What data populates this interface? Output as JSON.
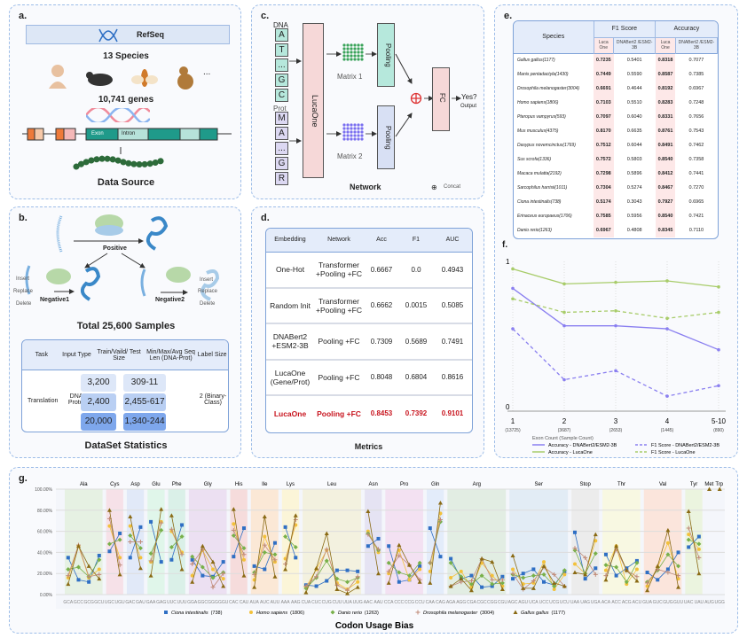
{
  "panel_a": {
    "label": "a.",
    "refseq": "RefSeq",
    "species": "13 Species",
    "ellipsis": "...",
    "genes": "10,741 genes",
    "exon": "Exon",
    "intron": "Intron",
    "title": "Data Source"
  },
  "panel_b": {
    "label": "b.",
    "positive": "Positive",
    "negative1": "Negative1",
    "negative2": "Negative2",
    "insert": "Insert",
    "replace": "Replace",
    "delete": "Delete",
    "total": "Total 25,600 Samples",
    "table": {
      "headers": [
        "Task",
        "Input Type",
        "Train/Vaild/ Test Size",
        "Min/Max/Avg Seq Len (DNA-Prot)",
        "Label Size"
      ],
      "task": "Translation",
      "input_type": "DNA -Protein",
      "sizes": [
        "3,200",
        "2,400",
        "20,000"
      ],
      "lens": [
        "309-11",
        "2,455-617",
        "1,340-244"
      ],
      "label_size": "2 (Binary-Class)"
    },
    "title": "DataSet Statistics"
  },
  "panel_c": {
    "label": "c.",
    "dna": "DNA",
    "dna_seq": [
      "A",
      "T",
      "...",
      "G",
      "C"
    ],
    "prot": "Prot",
    "prot_seq": [
      "M",
      "A",
      "...",
      "G",
      "R"
    ],
    "lucaone": "LucaOne",
    "matrix1": "Matrix 1",
    "matrix2": "Matrix 2",
    "pooling": "Pooling",
    "fc": "FC",
    "yes": "Yes?",
    "output": "Output",
    "title": "Network",
    "concat": "Concat"
  },
  "panel_d": {
    "label": "d.",
    "headers": [
      "Embedding",
      "Network",
      "Acc",
      "F1",
      "AUC"
    ],
    "rows": [
      [
        "One-Hot",
        "Transformer +Pooling +FC",
        "0.6667",
        "0.0",
        "0.4943"
      ],
      [
        "Random Init",
        "Transformer +Pooling +FC",
        "0.6662",
        "0.0015",
        "0.5085"
      ],
      [
        "DNABert2 +ESM2-3B",
        "Pooling +FC",
        "0.7309",
        "0.5689",
        "0.7491"
      ],
      [
        "LucaOne (Gene/Prot)",
        "Pooling +FC",
        "0.8048",
        "0.6804",
        "0.8616"
      ],
      [
        "LucaOne",
        "Pooling +FC",
        "0.8453",
        "0.7392",
        "0.9101"
      ]
    ],
    "title": "Metrics",
    "highlight_color": "#c8141e"
  },
  "panel_e": {
    "label": "e.",
    "species_header": "Species",
    "f1_header": "F1 Score",
    "acc_header": "Accuracy",
    "sub_headers": [
      "Luca One",
      "DNABert2 /ESM2-3B",
      "Luca One",
      "DNABert2 /ESM2-3B"
    ],
    "rows": [
      [
        "Gallus gallus(1177)",
        "0.7235",
        "0.5401",
        "0.8318",
        "0.7077"
      ],
      [
        "Manis pentadactyla(1430)",
        "0.7449",
        "0.5590",
        "0.8587",
        "0.7385"
      ],
      [
        "Drosophila melanogaster(3004)",
        "0.6691",
        "0.4644",
        "0.8192",
        "0.6967"
      ],
      [
        "Homo sapiens(1806)",
        "0.7103",
        "0.5510",
        "0.8283",
        "0.7248"
      ],
      [
        "Pteropus vampyrus(593)",
        "0.7097",
        "0.6040",
        "0.8331",
        "0.7656"
      ],
      [
        "Mus musculus(4375)",
        "0.8170",
        "0.6635",
        "0.8761",
        "0.7543"
      ],
      [
        "Dasypus novemcinctus(1769)",
        "0.7512",
        "0.6044",
        "0.8491",
        "0.7462"
      ],
      [
        "Sus scrofa(1336)",
        "0.7572",
        "0.5803",
        "0.8540",
        "0.7358"
      ],
      [
        "Macaca mulatta(2192)",
        "0.7298",
        "0.5896",
        "0.8412",
        "0.7441"
      ],
      [
        "Sarcophilus harrisii(1011)",
        "0.7304",
        "0.5274",
        "0.8467",
        "0.7270"
      ],
      [
        "Ciona intestinalis(738)",
        "0.5174",
        "0.3043",
        "0.7927",
        "0.6965"
      ],
      [
        "Erinaceus europaeus(1706)",
        "0.7585",
        "0.5956",
        "0.8540",
        "0.7421"
      ],
      [
        "Danio rerio(1263)",
        "0.6967",
        "0.4808",
        "0.8345",
        "0.7110"
      ]
    ]
  },
  "panel_f": {
    "label": "f."
  },
  "panel_g": {
    "label": "g.",
    "title": "Codon Usage Bias"
  },
  "chart_data": [
    {
      "type": "line",
      "title": "",
      "xlabel": "Exon Count (Sample Count)",
      "ylabel": "",
      "ylim": [
        0,
        1
      ],
      "yticks": [
        "0",
        "1"
      ],
      "categories": [
        "1",
        "2",
        "3",
        "4",
        "5-10"
      ],
      "counts": [
        "(13725)",
        "(3687)",
        "(2653)",
        "(1445)",
        "(890)"
      ],
      "series": [
        {
          "name": "Accuracy - DNABert2/ESM2-3B",
          "color": "#8a7ff0",
          "dash": false,
          "values": [
            0.82,
            0.57,
            0.57,
            0.55,
            0.41
          ]
        },
        {
          "name": "F1 Score - DNABert2/ESM2-3B",
          "color": "#8a7ff0",
          "dash": true,
          "values": [
            0.55,
            0.21,
            0.27,
            0.1,
            0.17
          ]
        },
        {
          "name": "Accuracy - LucaOne",
          "color": "#a8cc6a",
          "dash": false,
          "values": [
            0.95,
            0.85,
            0.86,
            0.87,
            0.83
          ]
        },
        {
          "name": "F1 Score - LucaOne",
          "color": "#a8cc6a",
          "dash": true,
          "values": [
            0.75,
            0.66,
            0.67,
            0.62,
            0.66
          ]
        }
      ],
      "grid": "vertical",
      "legend": "bottom"
    },
    {
      "type": "line",
      "title": "Codon Usage Bias",
      "ylim": [
        0,
        100
      ],
      "yticks": [
        "0.00%",
        "20.00%",
        "40.00%",
        "60.00%",
        "80.00%",
        "100.00%"
      ],
      "groups": [
        {
          "aa": "Ala",
          "codons": [
            "GCA",
            "GCC",
            "GCG",
            "GCU"
          ],
          "color": "#e6f1e3"
        },
        {
          "aa": "Cys",
          "codons": [
            "UGC",
            "UGU"
          ],
          "color": "#f6e1e8"
        },
        {
          "aa": "Asp",
          "codons": [
            "GAC",
            "GAU"
          ],
          "color": "#e1e9f8"
        },
        {
          "aa": "Glu",
          "codons": [
            "GAA",
            "GAG"
          ],
          "color": "#e0f6ea"
        },
        {
          "aa": "Phe",
          "codons": [
            "UUC",
            "UUU"
          ],
          "color": "#daf0e8"
        },
        {
          "aa": "Gly",
          "codons": [
            "GGA",
            "GGC",
            "GGG",
            "GGU"
          ],
          "color": "#ece0f2"
        },
        {
          "aa": "His",
          "codons": [
            "CAC",
            "CAU"
          ],
          "color": "#f6dcdc"
        },
        {
          "aa": "Ile",
          "codons": [
            "AUA",
            "AUC",
            "AUU"
          ],
          "color": "#fbe8d6"
        },
        {
          "aa": "Lys",
          "codons": [
            "AAA",
            "AAG"
          ],
          "color": "#fbf5d8"
        },
        {
          "aa": "Leu",
          "codons": [
            "CUA",
            "CUC",
            "CUG",
            "CUU",
            "UUA",
            "UUG"
          ],
          "color": "#f3f1df"
        },
        {
          "aa": "Asn",
          "codons": [
            "AAC",
            "AAU"
          ],
          "color": "#e5e3f3"
        },
        {
          "aa": "Pro",
          "codons": [
            "CCA",
            "CCC",
            "CCG",
            "CCU"
          ],
          "color": "#f3e1f2"
        },
        {
          "aa": "Gln",
          "codons": [
            "CAA",
            "CAG"
          ],
          "color": "#e3ecfa"
        },
        {
          "aa": "Arg",
          "codons": [
            "AGA",
            "AGG",
            "CGA",
            "CGC",
            "CGG",
            "CGU"
          ],
          "color": "#e2ede3"
        },
        {
          "aa": "Ser",
          "codons": [
            "AGC",
            "AGU",
            "UCA",
            "UCC",
            "UCG",
            "UCU"
          ],
          "color": "#e2ecf5"
        },
        {
          "aa": "Stop",
          "codons": [
            "UAA",
            "UAG",
            "UGA"
          ],
          "color": "#ececec"
        },
        {
          "aa": "Thr",
          "codons": [
            "ACA",
            "ACC",
            "ACG",
            "ACU"
          ],
          "color": "#f8f8e2"
        },
        {
          "aa": "Val",
          "codons": [
            "GUA",
            "GUC",
            "GUG",
            "GUU"
          ],
          "color": "#fbe5dc"
        },
        {
          "aa": "Tyr",
          "codons": [
            "UAC",
            "UAU"
          ],
          "color": "#ebf4df"
        },
        {
          "aa": "Met",
          "codons": [
            "AUG"
          ],
          "color": ""
        },
        {
          "aa": "Trp",
          "codons": [
            "UGG"
          ],
          "color": ""
        }
      ],
      "series": [
        {
          "name": "Ciona intestinalis",
          "count": "(738)",
          "color": "#2f6fc4",
          "marker": "square",
          "values": [
            35,
            14,
            12,
            37,
            41,
            58,
            35,
            64,
            69,
            31,
            33,
            66,
            33,
            18,
            17,
            31,
            36,
            63,
            27,
            24,
            49,
            64,
            35,
            9,
            8,
            13,
            23,
            23,
            22,
            46,
            53,
            46,
            12,
            14,
            27,
            63,
            36,
            34,
            15,
            18,
            7,
            8,
            17,
            15,
            20,
            24,
            12,
            9,
            22,
            59,
            15,
            25,
            38,
            18,
            25,
            32,
            21,
            14,
            24,
            40,
            45,
            55,
            100,
            100
          ]
        },
        {
          "name": "Homo sapiens",
          "count": "(1806)",
          "color": "#f3c13a",
          "marker": "circle",
          "values": [
            16,
            46,
            16,
            24,
            65,
            35,
            65,
            35,
            31,
            69,
            60,
            40,
            18,
            42,
            24,
            15,
            67,
            33,
            14,
            55,
            31,
            34,
            66,
            7,
            24,
            42,
            11,
            5,
            12,
            60,
            40,
            20,
            42,
            14,
            24,
            22,
            77,
            16,
            22,
            7,
            30,
            18,
            8,
            24,
            10,
            11,
            31,
            5,
            19,
            29,
            20,
            51,
            23,
            46,
            10,
            24,
            8,
            26,
            49,
            15,
            57,
            43,
            100,
            100
          ]
        },
        {
          "name": "Danio rerio",
          "count": "(1263)",
          "color": "#78b04a",
          "marker": "diamond",
          "values": [
            24,
            26,
            17,
            33,
            48,
            52,
            56,
            44,
            39,
            61,
            45,
            55,
            36,
            26,
            16,
            21,
            56,
            44,
            21,
            40,
            38,
            55,
            45,
            6,
            16,
            32,
            15,
            12,
            16,
            58,
            42,
            30,
            21,
            18,
            30,
            30,
            69,
            30,
            17,
            10,
            18,
            10,
            11,
            19,
            16,
            18,
            19,
            8,
            23,
            42,
            20,
            39,
            28,
            26,
            12,
            30,
            12,
            23,
            38,
            27,
            52,
            48,
            100,
            100
          ]
        },
        {
          "name": "Drosophila melanogaster",
          "count": "(3004)",
          "color": "#c08a78",
          "marker": "plus",
          "values": [
            18,
            47,
            17,
            19,
            72,
            28,
            50,
            50,
            32,
            68,
            62,
            38,
            29,
            43,
            7,
            20,
            61,
            38,
            19,
            47,
            33,
            29,
            71,
            8,
            17,
            43,
            9,
            4,
            17,
            57,
            43,
            22,
            37,
            28,
            14,
            30,
            71,
            8,
            12,
            13,
            34,
            14,
            14,
            20,
            5,
            13,
            26,
            19,
            8,
            44,
            35,
            19,
            18,
            43,
            23,
            17,
            11,
            24,
            21,
            18,
            63,
            35,
            100,
            100
          ]
        },
        {
          "name": "Gallus gallus",
          "count": "(1177)",
          "color": "#8a6a14",
          "marker": "triangle",
          "values": [
            10,
            46,
            27,
            15,
            80,
            19,
            74,
            25,
            18,
            81,
            75,
            24,
            12,
            46,
            31,
            8,
            81,
            18,
            7,
            74,
            17,
            24,
            75,
            2,
            25,
            58,
            5,
            1,
            7,
            79,
            20,
            11,
            47,
            28,
            12,
            11,
            87,
            8,
            15,
            4,
            34,
            31,
            5,
            37,
            6,
            6,
            27,
            11,
            8,
            21,
            19,
            57,
            14,
            46,
            23,
            13,
            4,
            27,
            61,
            7,
            79,
            20,
            100,
            100
          ]
        }
      ],
      "legend": "bottom"
    }
  ]
}
